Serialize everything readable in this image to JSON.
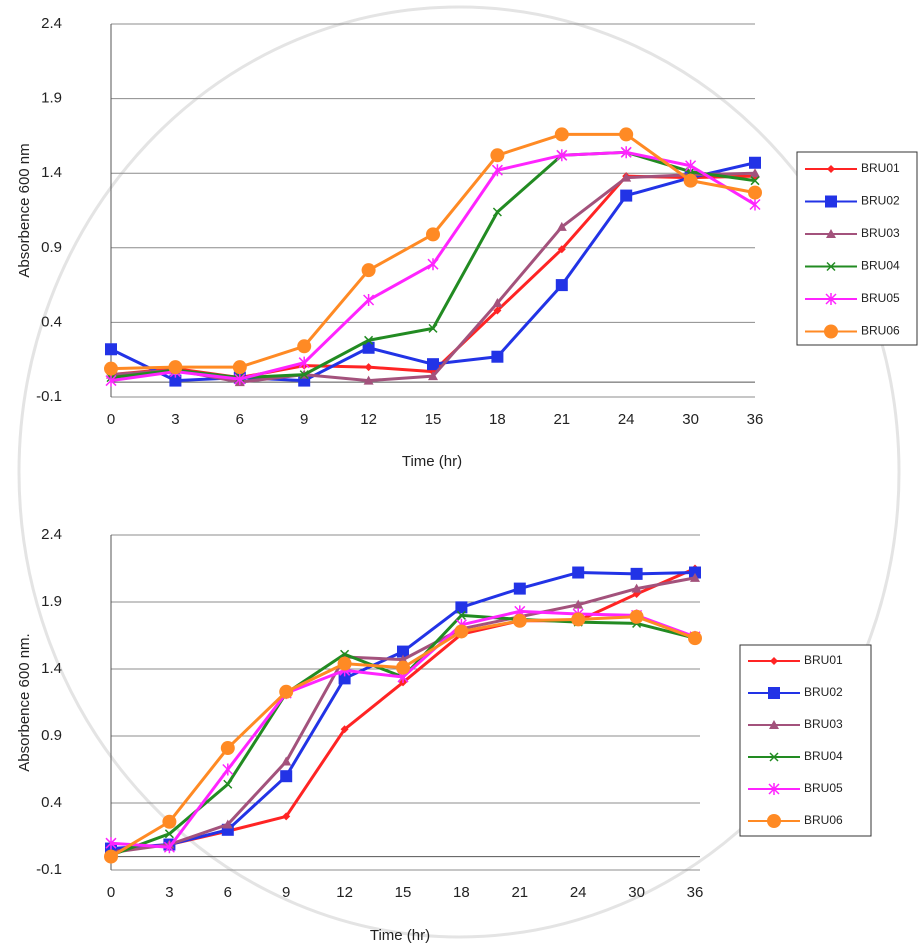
{
  "chart_data": [
    {
      "type": "line",
      "y_label": "Absorbence 600 nm",
      "x_label": "Time (hr)",
      "categories": [
        "0",
        "3",
        "6",
        "9",
        "12",
        "15",
        "18",
        "21",
        "24",
        "30",
        "36"
      ],
      "ylim": [
        -0.1,
        2.4
      ],
      "yticks": [
        -0.1,
        0.4,
        0.9,
        1.4,
        1.9,
        2.4
      ],
      "grid": true,
      "series": [
        {
          "name": "BRU01",
          "color": "#ff2424",
          "marker": "diamond",
          "values": [
            0.05,
            0.09,
            0.03,
            0.11,
            0.1,
            0.07,
            0.48,
            0.89,
            1.38,
            1.37,
            1.38
          ]
        },
        {
          "name": "BRU02",
          "color": "#2233e6",
          "marker": "square",
          "values": [
            0.22,
            0.01,
            0.03,
            0.01,
            0.23,
            0.12,
            0.17,
            0.65,
            1.25,
            1.37,
            1.47
          ]
        },
        {
          "name": "BRU03",
          "color": "#a3527c",
          "marker": "triangle",
          "values": [
            0.05,
            0.08,
            0.0,
            0.05,
            0.01,
            0.04,
            0.53,
            1.04,
            1.37,
            1.39,
            1.4
          ]
        },
        {
          "name": "BRU04",
          "color": "#228b22",
          "marker": "x",
          "values": [
            0.03,
            0.08,
            0.03,
            0.05,
            0.28,
            0.36,
            1.14,
            1.52,
            1.54,
            1.41,
            1.35
          ]
        },
        {
          "name": "BRU05",
          "color": "#ff24ff",
          "marker": "star",
          "values": [
            0.01,
            0.07,
            0.02,
            0.13,
            0.55,
            0.79,
            1.42,
            1.52,
            1.54,
            1.45,
            1.19
          ]
        },
        {
          "name": "BRU06",
          "color": "#ff8a24",
          "marker": "circle",
          "values": [
            0.09,
            0.1,
            0.1,
            0.24,
            0.75,
            0.99,
            1.52,
            1.66,
            1.66,
            1.35,
            1.27
          ]
        }
      ]
    },
    {
      "type": "line",
      "y_label": "Absorbence 600 nm.",
      "x_label": "Time (hr)",
      "categories": [
        "0",
        "3",
        "6",
        "9",
        "12",
        "15",
        "18",
        "21",
        "24",
        "30",
        "36"
      ],
      "ylim": [
        -0.1,
        2.4
      ],
      "yticks": [
        -0.1,
        0.4,
        0.9,
        1.4,
        1.9,
        2.4
      ],
      "grid": true,
      "series": [
        {
          "name": "BRU01",
          "color": "#ff2424",
          "marker": "diamond",
          "values": [
            0.04,
            0.09,
            0.19,
            0.3,
            0.95,
            1.3,
            1.66,
            1.76,
            1.76,
            1.96,
            2.15
          ]
        },
        {
          "name": "BRU02",
          "color": "#2233e6",
          "marker": "square",
          "values": [
            0.06,
            0.09,
            0.2,
            0.6,
            1.33,
            1.53,
            1.86,
            2.0,
            2.12,
            2.11,
            2.12
          ]
        },
        {
          "name": "BRU03",
          "color": "#a3527c",
          "marker": "triangle",
          "values": [
            0.03,
            0.09,
            0.24,
            0.71,
            1.49,
            1.47,
            1.7,
            1.79,
            1.88,
            2.0,
            2.08
          ]
        },
        {
          "name": "BRU04",
          "color": "#228b22",
          "marker": "x",
          "values": [
            0.01,
            0.17,
            0.54,
            1.22,
            1.51,
            1.34,
            1.8,
            1.77,
            1.75,
            1.74,
            1.63
          ]
        },
        {
          "name": "BRU05",
          "color": "#ff24ff",
          "marker": "star",
          "values": [
            0.1,
            0.07,
            0.65,
            1.22,
            1.39,
            1.34,
            1.73,
            1.83,
            1.81,
            1.8,
            1.64
          ]
        },
        {
          "name": "BRU06",
          "color": "#ff8a24",
          "marker": "circle",
          "values": [
            0.0,
            0.26,
            0.81,
            1.23,
            1.44,
            1.41,
            1.68,
            1.76,
            1.77,
            1.79,
            1.63
          ]
        }
      ]
    }
  ]
}
